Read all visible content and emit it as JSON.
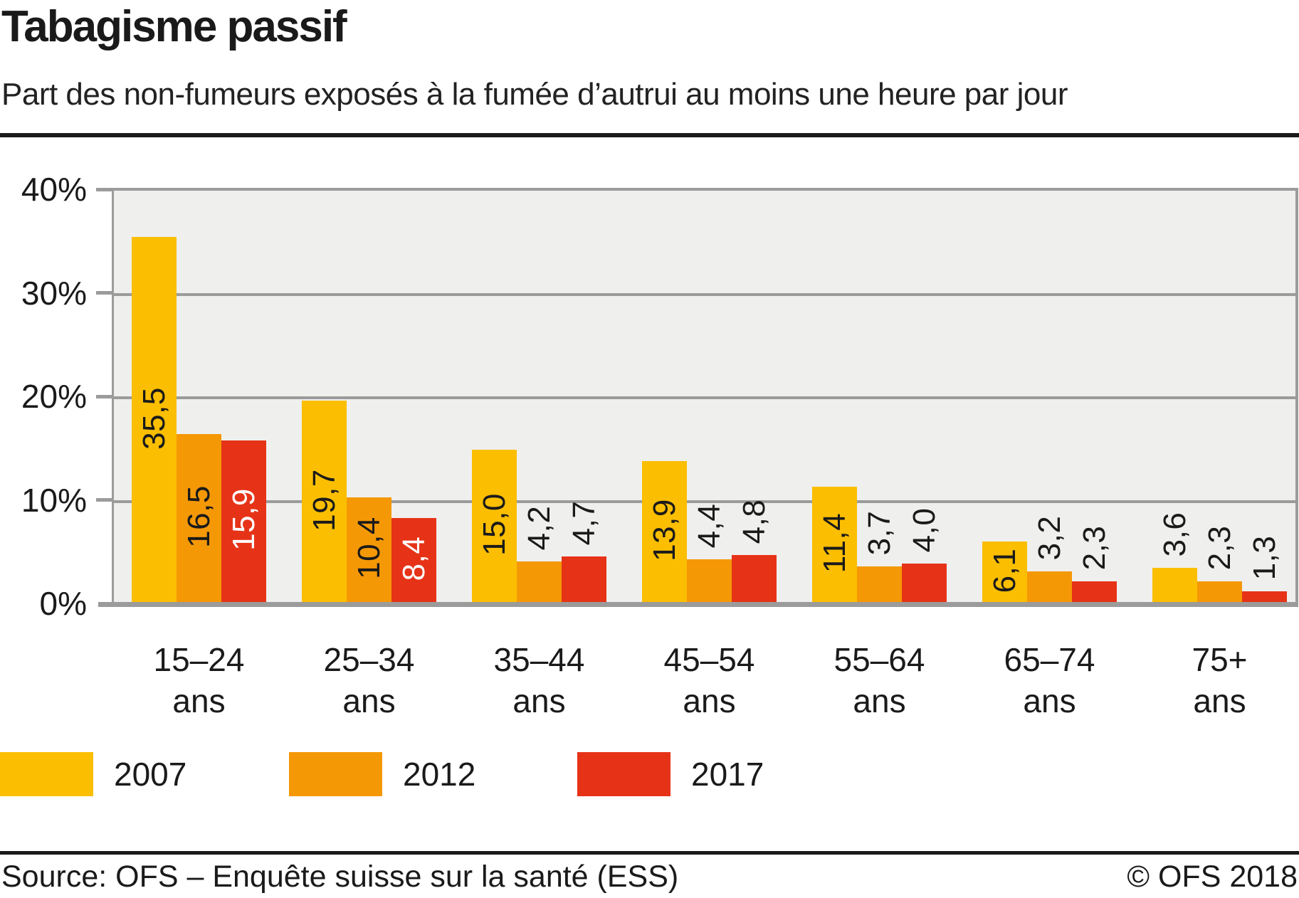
{
  "header": {
    "title": "Tabagisme passif",
    "subtitle": "Part des non-fumeurs exposés à la fumée d’autrui au moins une heure par jour"
  },
  "chart_data": {
    "type": "bar",
    "title": "Tabagisme passif",
    "subtitle": "Part des non-fumeurs exposés à la fumée d’autrui au moins une heure par jour",
    "categories": [
      "15–24",
      "25–34",
      "35–44",
      "45–54",
      "55–64",
      "65–74",
      "75+"
    ],
    "category_suffix": "ans",
    "series": [
      {
        "name": "2007",
        "color": "#fbbe00",
        "inside_label_color": "#1a1a1a",
        "values": [
          35.5,
          19.7,
          15.0,
          13.9,
          11.4,
          6.1,
          3.6
        ]
      },
      {
        "name": "2012",
        "color": "#f59806",
        "inside_label_color": "#1a1a1a",
        "values": [
          16.5,
          10.4,
          4.2,
          4.4,
          3.7,
          3.2,
          2.3
        ]
      },
      {
        "name": "2017",
        "color": "#e63317",
        "inside_label_color": "#ffffff",
        "values": [
          15.9,
          8.4,
          4.7,
          4.8,
          4.0,
          2.3,
          1.3
        ]
      }
    ],
    "value_label_decimal_separator": ",",
    "outside_label_color": "#1a1a1a",
    "y_axis": {
      "tick_labels": [
        "40%",
        "30%",
        "20%",
        "10%",
        "0%"
      ],
      "min": 0,
      "max": 40,
      "step": 10
    },
    "grid": true,
    "legend_position": "bottom",
    "panel_background": "#efefee",
    "grid_color": "#9b9b9b",
    "xlabel": "",
    "ylabel": ""
  },
  "footer": {
    "source": "Source: OFS – Enquête suisse sur la santé (ESS)",
    "copyright": "© OFS 2018"
  }
}
